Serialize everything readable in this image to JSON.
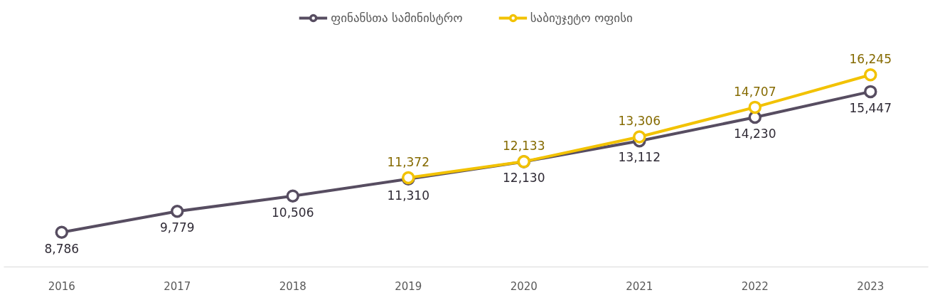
{
  "chart_data": {
    "type": "line",
    "categories": [
      "2016",
      "2017",
      "2018",
      "2019",
      "2020",
      "2021",
      "2022",
      "2023"
    ],
    "series": [
      {
        "name": "ფინანსთა სამინისტრო",
        "color": "#574d61",
        "values": [
          8786,
          9779,
          10506,
          11310,
          12130,
          13112,
          14230,
          15447
        ],
        "value_labels": [
          "8,786",
          "9,779",
          "10,506",
          "11,310",
          "12,130",
          "13,112",
          "14,230",
          "15,447"
        ]
      },
      {
        "name": "საბიუჯეტო ოფისი",
        "color": "#f2c200",
        "values": [
          null,
          null,
          null,
          11372,
          12133,
          13306,
          14707,
          16245
        ],
        "value_labels": [
          null,
          null,
          null,
          "11,372",
          "12,133",
          "13,306",
          "14,707",
          "16,245"
        ]
      }
    ],
    "marker": "circle",
    "line_style": "solid",
    "legend": "top",
    "grid": false
  }
}
